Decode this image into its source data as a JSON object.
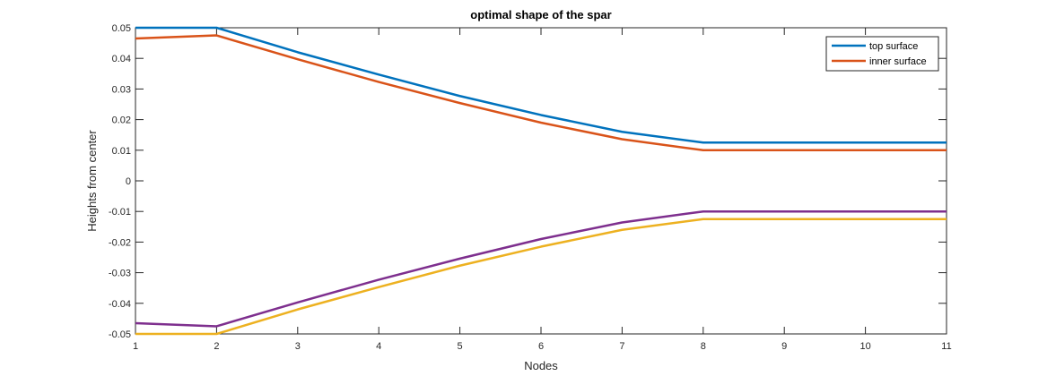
{
  "chart_data": {
    "type": "line",
    "title": "optimal shape of the spar",
    "xlabel": "Nodes",
    "ylabel": "Heights from center",
    "xlim": [
      1,
      11
    ],
    "ylim": [
      -0.05,
      0.05
    ],
    "x": [
      1,
      2,
      3,
      4,
      5,
      6,
      7,
      8,
      9,
      10,
      11
    ],
    "xticks": [
      "1",
      "2",
      "3",
      "4",
      "5",
      "6",
      "7",
      "8",
      "9",
      "10",
      "11"
    ],
    "yticks": [
      "0.05",
      "0.04",
      "0.03",
      "0.02",
      "0.01",
      "0",
      "-0.01",
      "-0.02",
      "-0.03",
      "-0.04",
      "-0.05"
    ],
    "ytick_values": [
      0.05,
      0.04,
      0.03,
      0.02,
      0.01,
      0,
      -0.01,
      -0.02,
      -0.03,
      -0.04,
      -0.05
    ],
    "grid": false,
    "legend_position": "top-right",
    "series": [
      {
        "name": "top surface",
        "color": "#0072bd",
        "in_legend": true,
        "values": [
          0.05,
          0.05,
          0.042,
          0.0347,
          0.0277,
          0.0215,
          0.016,
          0.0125,
          0.0125,
          0.0125,
          0.0125
        ]
      },
      {
        "name": "inner surface",
        "color": "#d95319",
        "in_legend": true,
        "values": [
          0.0465,
          0.0475,
          0.0397,
          0.0323,
          0.0254,
          0.019,
          0.0136,
          0.01,
          0.01,
          0.01,
          0.01
        ]
      },
      {
        "color": "#edb120",
        "in_legend": false,
        "values": [
          -0.05,
          -0.05,
          -0.042,
          -0.0347,
          -0.0277,
          -0.0215,
          -0.016,
          -0.0125,
          -0.0125,
          -0.0125,
          -0.0125
        ]
      },
      {
        "color": "#7e2f8e",
        "in_legend": false,
        "values": [
          -0.0465,
          -0.0475,
          -0.0397,
          -0.0323,
          -0.0254,
          -0.019,
          -0.0136,
          -0.01,
          -0.01,
          -0.01,
          -0.01
        ]
      }
    ]
  }
}
